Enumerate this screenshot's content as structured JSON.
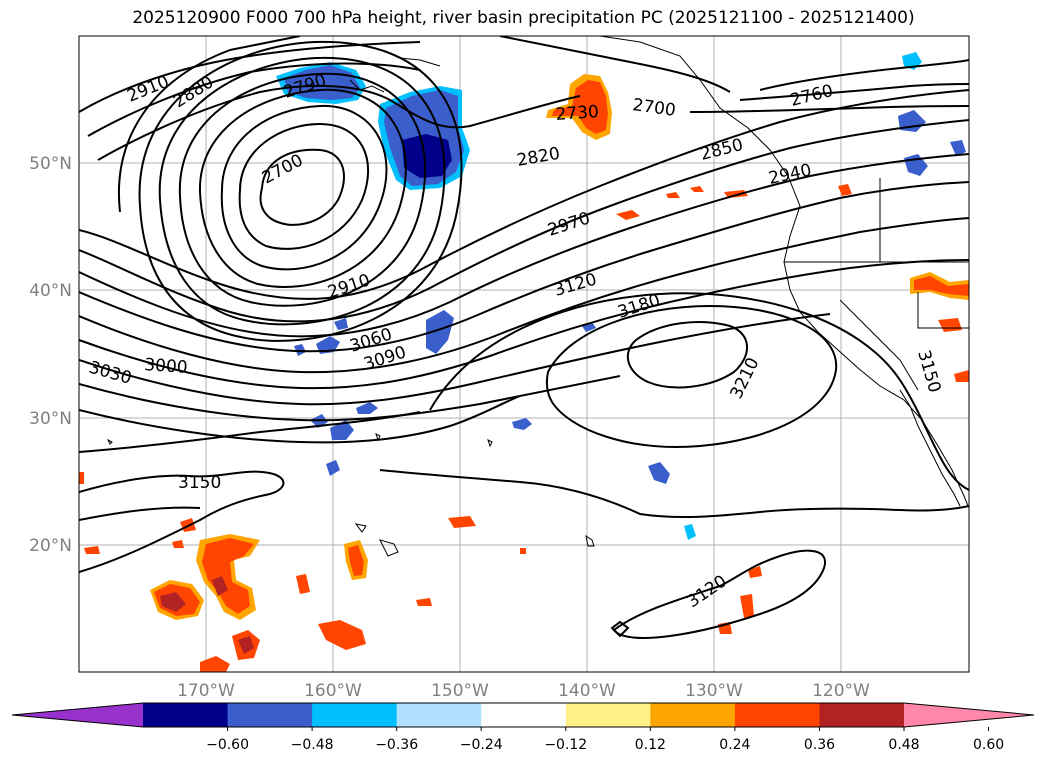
{
  "title": "2025120900 F000 700 hPa height, river basin precipitation PC (2025121100 - 2025121400)",
  "map": {
    "lat_labels": [
      "50°N",
      "40°N",
      "30°N",
      "20°N"
    ],
    "lon_labels": [
      "170°W",
      "160°W",
      "150°W",
      "140°W",
      "130°W",
      "120°W"
    ]
  },
  "contour_labels": [
    "2910",
    "2880",
    "2790",
    "2700",
    "2730",
    "2700",
    "2760",
    "2820",
    "2850",
    "2940",
    "2970",
    "2910",
    "3120",
    "3180",
    "3060",
    "3090",
    "3030",
    "3000",
    "3210",
    "3150",
    "3150",
    "3120"
  ],
  "colorbar": {
    "colors": [
      "#9932cc",
      "#00008b",
      "#3a5fcd",
      "#00bfff",
      "#b0e2ff",
      "#ffffff",
      "#fff08a",
      "#ffa500",
      "#ff4500",
      "#b22222",
      "#ff88aa"
    ],
    "tick_labels": [
      "−0.60",
      "−0.48",
      "−0.36",
      "−0.24",
      "−0.12",
      "0.12",
      "0.24",
      "0.36",
      "0.48",
      "0.60"
    ]
  },
  "colors": {
    "neg_strong": "#00008b",
    "neg_mid": "#3a5fcd",
    "neg_light": "#00bfff",
    "pos_light": "#ffa500",
    "pos_mid": "#ff4500",
    "pos_strong": "#b22222",
    "pos_edge": "#fff08a"
  }
}
